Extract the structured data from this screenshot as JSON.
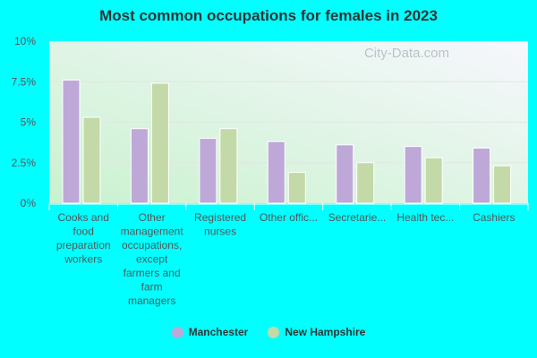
{
  "chart_data": {
    "type": "bar",
    "title": "Most common occupations for females in 2023",
    "categories": [
      "Cooks and food preparation workers",
      "Other management occupations, except farmers and farm managers",
      "Registered nurses",
      "Other offic...",
      "Secretarie...",
      "Health tec...",
      "Cashiers"
    ],
    "category_lines": [
      [
        "Cooks and",
        "food",
        "preparation",
        "workers"
      ],
      [
        "Other",
        "management",
        "occupations,",
        "except",
        "farmers and",
        "farm",
        "managers"
      ],
      [
        "Registered",
        "nurses"
      ],
      [
        "Other offic..."
      ],
      [
        "Secretarie..."
      ],
      [
        "Health tec..."
      ],
      [
        "Cashiers"
      ]
    ],
    "series": [
      {
        "name": "Manchester",
        "color": "#bea8d8",
        "values": [
          7.6,
          4.6,
          4.0,
          3.8,
          3.6,
          3.5,
          3.4
        ]
      },
      {
        "name": "New Hampshire",
        "color": "#c4d9a8",
        "values": [
          5.3,
          7.4,
          4.6,
          1.9,
          2.5,
          2.8,
          2.3
        ]
      }
    ],
    "yticks": [
      "0%",
      "2.5%",
      "5%",
      "7.5%",
      "10%"
    ],
    "ylim": [
      0,
      10
    ],
    "grid": true,
    "legend": "bottom",
    "watermark": "City-Data.com"
  }
}
